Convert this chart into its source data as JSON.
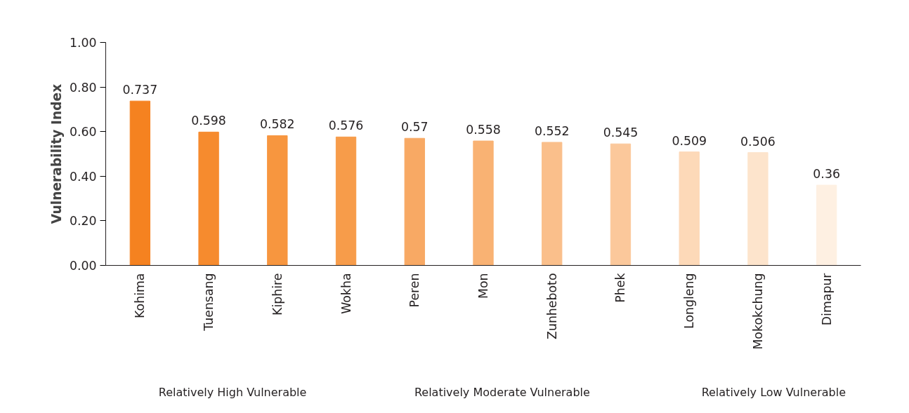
{
  "chart_data": {
    "type": "bar",
    "ylabel": "Vulnerability Index",
    "categories": [
      "Kohima",
      "Tuensang",
      "Kiphire",
      "Wokha",
      "Peren",
      "Mon",
      "Zunheboto",
      "Phek",
      "Longleng",
      "Mokokchung",
      "Dimapur"
    ],
    "values": [
      0.737,
      0.598,
      0.582,
      0.576,
      0.57,
      0.558,
      0.552,
      0.545,
      0.509,
      0.506,
      0.36
    ],
    "colors": [
      "#f58220",
      "#f68b2e",
      "#f7963f",
      "#f79c4a",
      "#f8a964",
      "#f9b273",
      "#fabf8b",
      "#fbc89b",
      "#fdd9b8",
      "#fde4cc",
      "#fef0e2"
    ],
    "ylim": [
      0,
      1
    ],
    "yticks": [
      {
        "value": 0,
        "label": "0.00"
      },
      {
        "value": 0.2,
        "label": "0.20"
      },
      {
        "value": 0.4,
        "label": "0.40"
      },
      {
        "value": 0.6,
        "label": "0.60"
      },
      {
        "value": 0.8,
        "label": "0.80"
      },
      {
        "value": 1,
        "label": "1.00"
      }
    ],
    "data_labels": true,
    "grid": false,
    "annotations": [
      "Relatively High Vulnerable",
      "Relatively Moderate Vulnerable",
      "Relatively Low Vulnerable"
    ]
  }
}
